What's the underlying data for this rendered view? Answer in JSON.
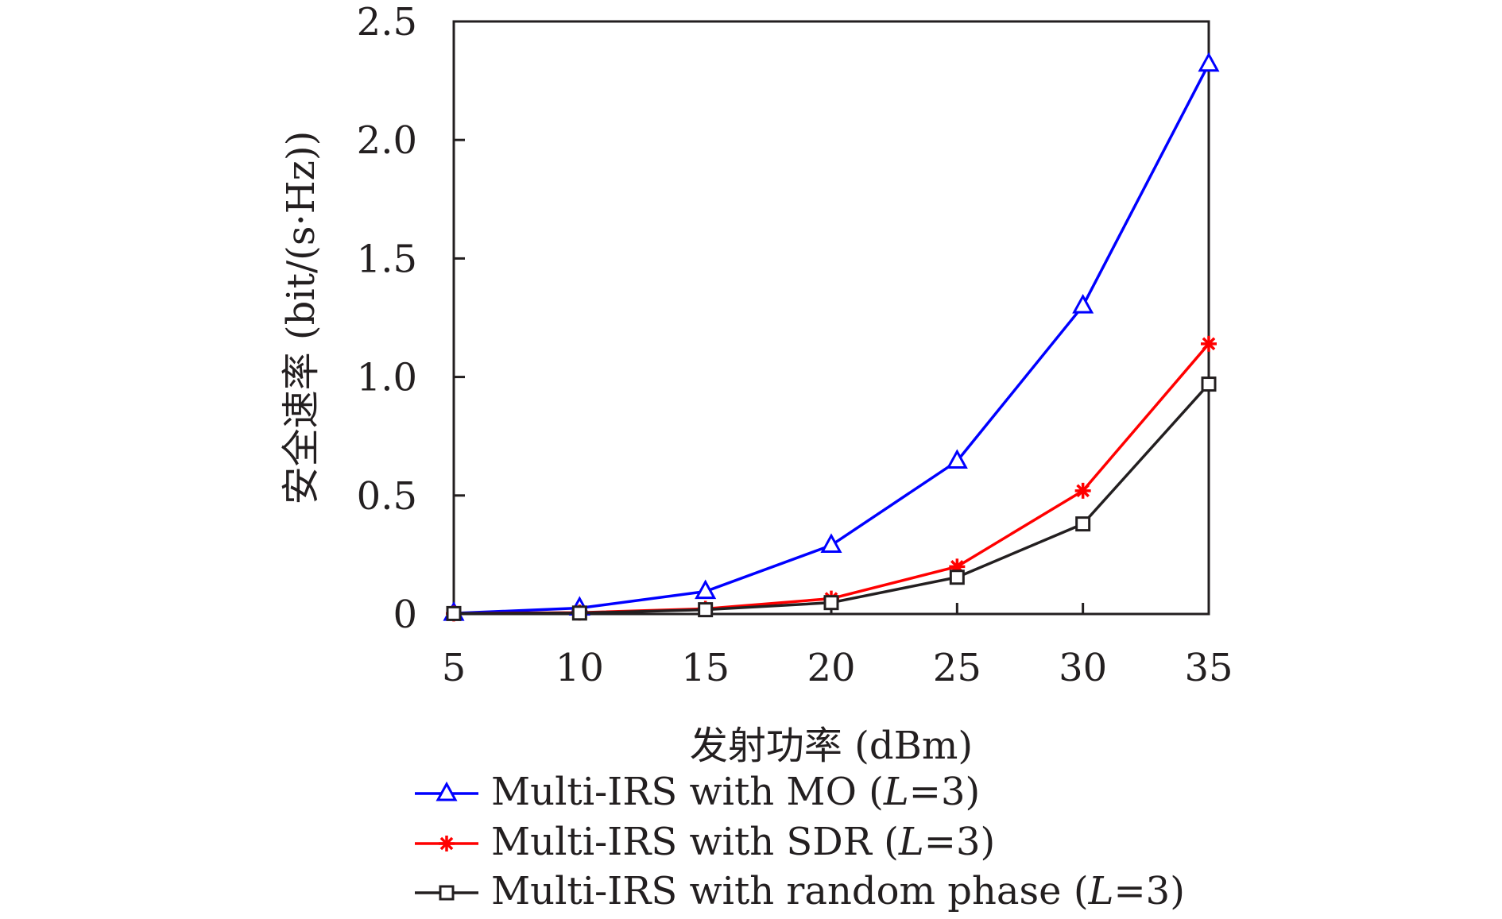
{
  "chart_data": {
    "type": "line",
    "xlabel": "发射功率 (dBm)",
    "ylabel": "安全速率 (bit/(s·Hz))",
    "x": [
      5,
      10,
      15,
      20,
      25,
      30,
      35
    ],
    "xticks": [
      "5",
      "10",
      "15",
      "20",
      "25",
      "30",
      "35"
    ],
    "yticks": [
      "0",
      "0.5",
      "1.0",
      "1.5",
      "2.0",
      "2.5"
    ],
    "xlim": [
      5,
      35
    ],
    "ylim": [
      0,
      2.5
    ],
    "grid": false,
    "legend_position": "bottom",
    "series": [
      {
        "name": "Multi-IRS with MO (",
        "name_italic": "L",
        "name_suffix": "=3)",
        "color": "#0000ff",
        "marker": "triangle",
        "values": [
          0.003,
          0.025,
          0.095,
          0.29,
          0.645,
          1.3,
          2.32
        ]
      },
      {
        "name": "Multi-IRS with SDR (",
        "name_italic": "L",
        "name_suffix": "=3)",
        "color": "#ff0000",
        "marker": "asterisk",
        "values": [
          0.002,
          0.006,
          0.022,
          0.065,
          0.2,
          0.52,
          1.14
        ]
      },
      {
        "name": "Multi-IRS with random phase (",
        "name_italic": "L",
        "name_suffix": "=3)",
        "color": "#231f20",
        "marker": "square",
        "values": [
          0.002,
          0.004,
          0.018,
          0.048,
          0.155,
          0.38,
          0.97
        ]
      }
    ]
  }
}
